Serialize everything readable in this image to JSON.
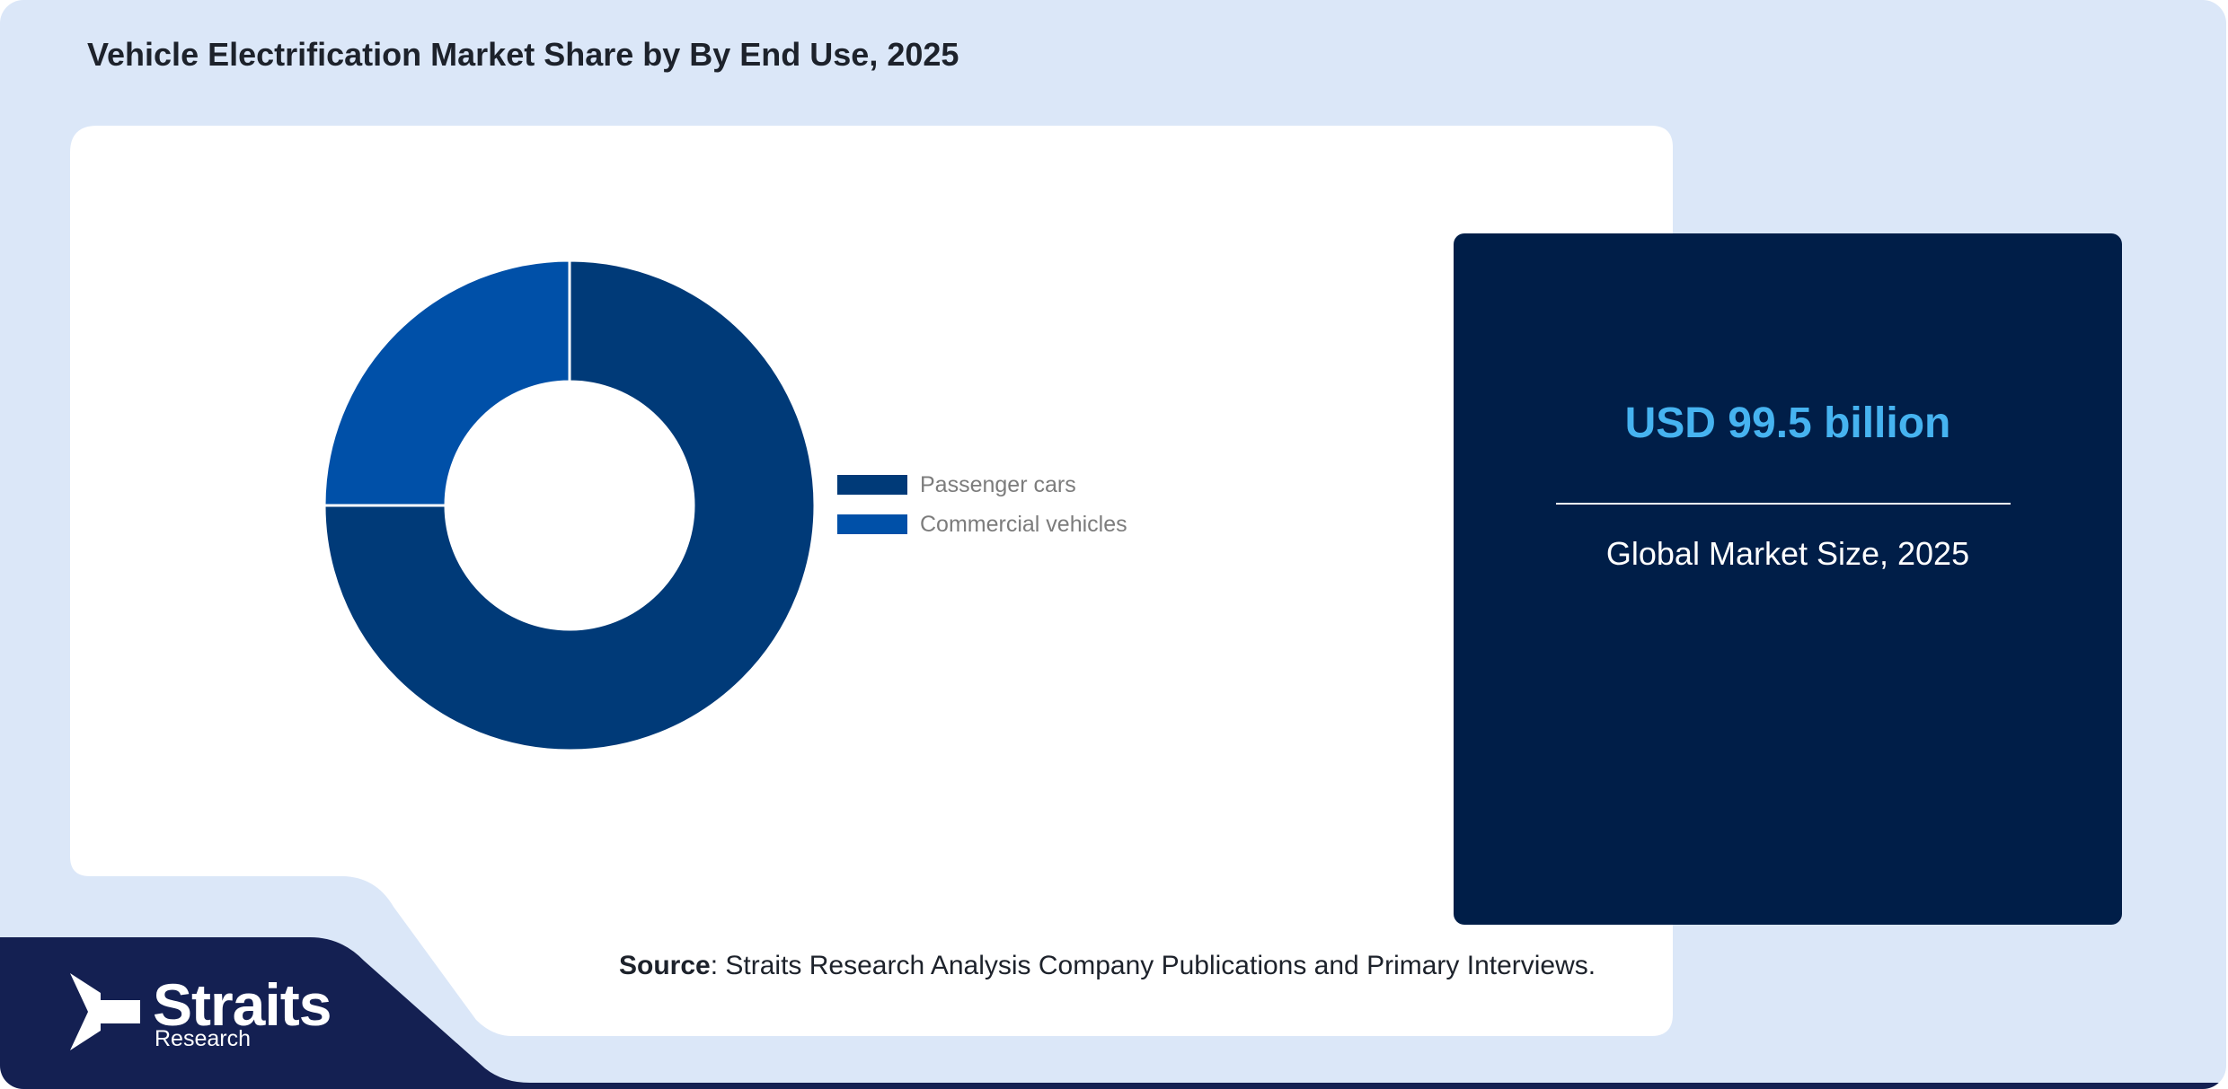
{
  "title": "Vehicle Electrification Market Share by By End Use, 2025",
  "chart_data": {
    "type": "pie",
    "donut": true,
    "categories": [
      "Passenger cars",
      "Commercial vehicles"
    ],
    "values": [
      75,
      25
    ],
    "colors": [
      "#003a78",
      "#0050a8"
    ],
    "legend_position": "right"
  },
  "market_size": {
    "value": "USD 99.5 billion",
    "caption": "Global Market Size, 2025"
  },
  "source": {
    "label": "Source",
    "text": ": Straits Research Analysis Company Publications and Primary Interviews."
  },
  "brand": {
    "name": "Straits",
    "sub": "Research",
    "logo_icon": "arrow-chevron-logo"
  },
  "colors": {
    "background": "#dbe7f8",
    "card": "#001e48",
    "accent": "#46b3f0",
    "footer": "#142052"
  }
}
